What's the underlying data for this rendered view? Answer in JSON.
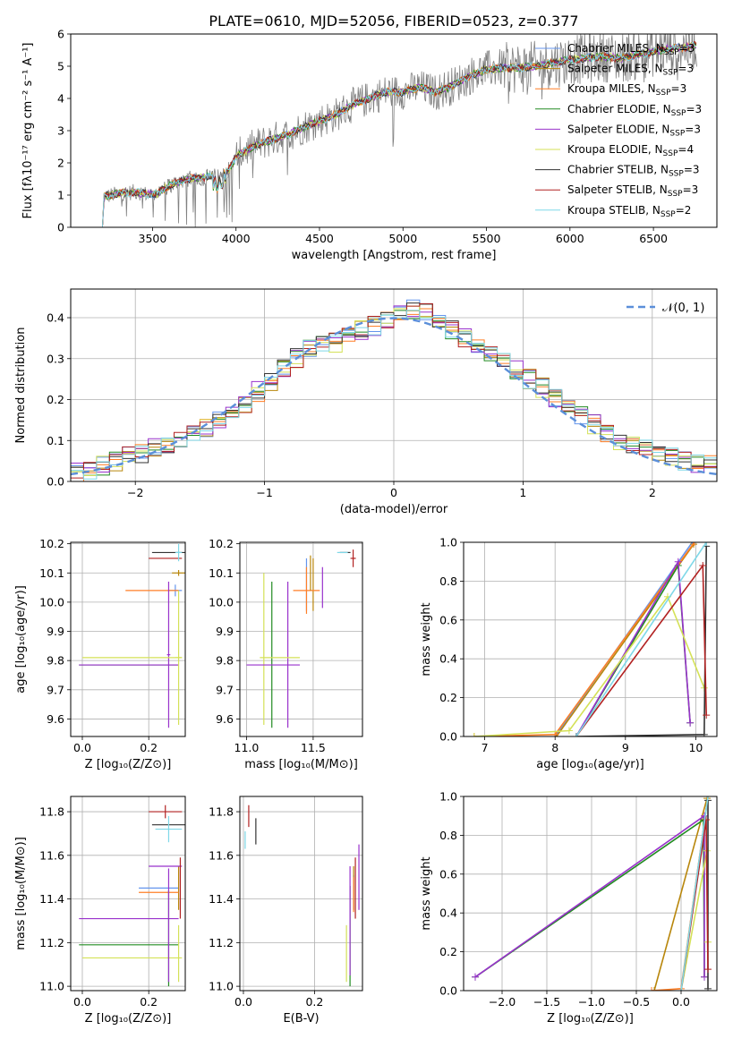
{
  "figure_title": "PLATE=0610, MJD=52056, FIBERID=0523, z=0.377",
  "palette": {
    "Chabrier MILES": "#6495ed",
    "Salpeter MILES": "#b8860b",
    "Kroupa MILES": "#ff7f27",
    "Chabrier ELODIE": "#228b22",
    "Salpeter ELODIE": "#9932cc",
    "Kroupa ELODIE": "#d4e157",
    "Chabrier STELIB": "#333333",
    "Salpeter STELIB": "#b22222",
    "Kroupa STELIB": "#7fd8e8",
    "data": "#808080",
    "gauss": "#5b8fd9"
  },
  "chart_data": [
    {
      "id": "spectrum",
      "type": "line",
      "xlabel": "wavelength [Angstrom, rest frame]",
      "ylabel": "Flux [fλ10⁻¹⁷ erg cm⁻² s⁻¹ A⁻¹]",
      "xlim": [
        3010,
        6880
      ],
      "ylim": [
        0,
        6
      ],
      "xticks": [
        3500,
        4000,
        4500,
        5000,
        5500,
        6000,
        6500
      ],
      "yticks": [
        0,
        1,
        2,
        3,
        4,
        5,
        6
      ],
      "grid": false,
      "legend_position": "top-right",
      "continuum_knots": [
        [
          3200,
          0
        ],
        [
          3210,
          0.95
        ],
        [
          3300,
          1.05
        ],
        [
          3400,
          1.1
        ],
        [
          3480,
          1.02
        ],
        [
          3530,
          1.05
        ],
        [
          3600,
          1.3
        ],
        [
          3700,
          1.5
        ],
        [
          3800,
          1.55
        ],
        [
          3900,
          1.6
        ],
        [
          3960,
          1.8
        ],
        [
          4000,
          2.2
        ],
        [
          4100,
          2.5
        ],
        [
          4200,
          2.7
        ],
        [
          4300,
          2.85
        ],
        [
          4400,
          3.1
        ],
        [
          4500,
          3.3
        ],
        [
          4600,
          3.5
        ],
        [
          4700,
          3.8
        ],
        [
          4800,
          4.0
        ],
        [
          4900,
          4.2
        ],
        [
          5000,
          4.2
        ],
        [
          5100,
          4.35
        ],
        [
          5200,
          4.2
        ],
        [
          5300,
          4.4
        ],
        [
          5400,
          4.7
        ],
        [
          5500,
          4.9
        ],
        [
          5600,
          4.95
        ],
        [
          5700,
          4.95
        ],
        [
          5800,
          5.0
        ],
        [
          5900,
          5.1
        ],
        [
          6000,
          5.2
        ],
        [
          6100,
          5.25
        ],
        [
          6200,
          5.3
        ],
        [
          6300,
          5.25
        ],
        [
          6400,
          5.35
        ],
        [
          6500,
          5.45
        ],
        [
          6600,
          5.55
        ],
        [
          6700,
          5.6
        ],
        [
          6750,
          5.65
        ]
      ],
      "series": [
        {
          "label": "Chabrier MILES",
          "nssp": "3"
        },
        {
          "label": "Salpeter MILES",
          "nssp": "3"
        },
        {
          "label": "Kroupa MILES",
          "nssp": "3"
        },
        {
          "label": "Chabrier ELODIE",
          "nssp": "3"
        },
        {
          "label": "Salpeter ELODIE",
          "nssp": "3"
        },
        {
          "label": "Kroupa ELODIE",
          "nssp": "4"
        },
        {
          "label": "Chabrier STELIB",
          "nssp": "3"
        },
        {
          "label": "Salpeter STELIB",
          "nssp": "3"
        },
        {
          "label": "Kroupa STELIB",
          "nssp": "2"
        }
      ]
    },
    {
      "id": "residuals",
      "type": "step",
      "xlabel": "(data-model)/error",
      "ylabel": "Normed distribution",
      "xlim": [
        -2.5,
        2.5
      ],
      "ylim": [
        0,
        0.47
      ],
      "xticks": [
        -2,
        -1,
        0,
        1,
        2
      ],
      "yticks": [
        0.0,
        0.1,
        0.2,
        0.3,
        0.4
      ],
      "grid": true,
      "legend_position": "top-right",
      "gauss_label": "𝒩(0, 1)",
      "bins": 50,
      "base_histogram": [
        0.02,
        0.03,
        0.04,
        0.05,
        0.06,
        0.07,
        0.08,
        0.09,
        0.1,
        0.12,
        0.13,
        0.15,
        0.17,
        0.19,
        0.22,
        0.24,
        0.28,
        0.3,
        0.32,
        0.33,
        0.34,
        0.36,
        0.37,
        0.38,
        0.4,
        0.41,
        0.42,
        0.41,
        0.39,
        0.37,
        0.35,
        0.33,
        0.31,
        0.29,
        0.27,
        0.25,
        0.23,
        0.2,
        0.18,
        0.16,
        0.14,
        0.12,
        0.1,
        0.09,
        0.08,
        0.07,
        0.06,
        0.05,
        0.045,
        0.04
      ]
    },
    {
      "id": "age_vs_Z",
      "type": "errorbar",
      "xlabel": "Z [log₁₀(Z/Z⊙)]",
      "ylabel": "age  [log₁₀(age/yr)]",
      "xlim": [
        -0.035,
        0.31
      ],
      "ylim": [
        9.54,
        10.205
      ],
      "xticks": [
        0.0,
        0.2
      ],
      "yticks": [
        9.6,
        9.7,
        9.8,
        9.9,
        10.0,
        10.1,
        10.2
      ],
      "grid": true,
      "points": [
        {
          "s": "Chabrier MILES",
          "x": 0.28,
          "xe": 0.02,
          "y": 10.04,
          "ye": 0.02
        },
        {
          "s": "Salpeter MILES",
          "x": 0.29,
          "xe": 0.02,
          "y": 10.1,
          "ye": 0.01
        },
        {
          "s": "Kroupa MILES",
          "x": 0.21,
          "xe": 0.08,
          "y": 10.04,
          "ye": 0.0
        },
        {
          "s": "Chabrier ELODIE",
          "x": 0.14,
          "xe": 0.15,
          "y": 9.785,
          "ye": 0.0
        },
        {
          "s": "Salpeter ELODIE",
          "x": 0.26,
          "xe": 0.005,
          "y": 9.82,
          "ye": 0.25
        },
        {
          "s": "Kroupa ELODIE",
          "x": 0.15,
          "xe": 0.15,
          "y": 9.81,
          "ye": 0.0
        },
        {
          "s": "Chabrier STELIB",
          "x": 0.26,
          "xe": 0.05,
          "y": 10.17,
          "ye": 0.0
        },
        {
          "s": "Salpeter STELIB",
          "x": 0.25,
          "xe": 0.05,
          "y": 10.15,
          "ye": 0.0
        },
        {
          "s": "Kroupa STELIB",
          "x": 0.29,
          "xe": 0.01,
          "y": 10.17,
          "ye": 0.03
        },
        {
          "s": "Salpeter ELODIE",
          "x": 0.14,
          "xe": 0.15,
          "y": 9.785,
          "ye": 0.0
        },
        {
          "s": "Kroupa ELODIE",
          "x": 0.29,
          "xe": 0.01,
          "y": 9.81,
          "ye": 0.23
        }
      ]
    },
    {
      "id": "age_vs_mass",
      "type": "errorbar",
      "xlabel": "mass [log₁₀(M/M⊙)]",
      "ylabel": "",
      "xlim": [
        10.95,
        11.87
      ],
      "ylim": [
        9.54,
        10.205
      ],
      "xticks": [
        11.0,
        11.5
      ],
      "yticks": [
        9.6,
        9.7,
        9.8,
        9.9,
        10.0,
        10.1,
        10.2
      ],
      "grid": true,
      "points": [
        {
          "s": "Chabrier MILES",
          "x": 11.45,
          "xe": 0.0,
          "y": 10.06,
          "ye": 0.09
        },
        {
          "s": "Salpeter MILES",
          "x": 11.5,
          "xe": 0.0,
          "y": 10.06,
          "ye": 0.09
        },
        {
          "s": "Kroupa MILES",
          "x": 11.45,
          "xe": 0.1,
          "y": 10.04,
          "ye": 0.08
        },
        {
          "s": "Chabrier ELODIE",
          "x": 11.19,
          "xe": 0.0,
          "y": 9.82,
          "ye": 0.25
        },
        {
          "s": "Salpeter ELODIE",
          "x": 11.31,
          "xe": 0.0,
          "y": 9.82,
          "ye": 0.25
        },
        {
          "s": "Kroupa ELODIE",
          "x": 11.13,
          "xe": 0.0,
          "y": 9.84,
          "ye": 0.26
        },
        {
          "s": "Chabrier STELIB",
          "x": 11.74,
          "xe": 0.04,
          "y": 10.17,
          "ye": 0.0
        },
        {
          "s": "Salpeter STELIB",
          "x": 11.8,
          "xe": 0.02,
          "y": 10.15,
          "ye": 0.03
        },
        {
          "s": "Kroupa STELIB",
          "x": 11.72,
          "xe": 0.04,
          "y": 10.17,
          "ye": 0.0
        },
        {
          "s": "Salpeter ELODIE",
          "x": 11.2,
          "xe": 0.2,
          "y": 9.785,
          "ye": 0.0
        },
        {
          "s": "Kroupa ELODIE",
          "x": 11.25,
          "xe": 0.15,
          "y": 9.81,
          "ye": 0.0
        },
        {
          "s": "Salpeter MILES",
          "x": 11.48,
          "xe": 0.0,
          "y": 10.1,
          "ye": 0.06
        },
        {
          "s": "Salpeter ELODIE",
          "x": 11.57,
          "xe": 0.0,
          "y": 10.05,
          "ye": 0.07
        }
      ]
    },
    {
      "id": "weight_vs_age",
      "type": "line",
      "xlabel": "age  [log₁₀(age/yr)]",
      "ylabel": "mass weight",
      "xlim": [
        6.7,
        10.3
      ],
      "ylim": [
        0,
        1
      ],
      "xticks": [
        7,
        8,
        9,
        10
      ],
      "yticks": [
        0.0,
        0.2,
        0.4,
        0.6,
        0.8,
        1.0
      ],
      "grid": true,
      "series": [
        {
          "s": "Chabrier MILES",
          "pts": [
            [
              8.0,
              0.0
            ],
            [
              9.95,
              1.0
            ]
          ]
        },
        {
          "s": "Salpeter MILES",
          "pts": [
            [
              8.02,
              0.0
            ],
            [
              9.97,
              0.99
            ]
          ]
        },
        {
          "s": "Kroupa MILES",
          "pts": [
            [
              6.85,
              0.0
            ],
            [
              8.0,
              0.01
            ],
            [
              9.98,
              1.0
            ]
          ]
        },
        {
          "s": "Chabrier ELODIE",
          "pts": [
            [
              8.3,
              0.0
            ],
            [
              9.75,
              0.88
            ],
            [
              9.92,
              0.07
            ]
          ]
        },
        {
          "s": "Salpeter ELODIE",
          "pts": [
            [
              8.3,
              0.0
            ],
            [
              9.75,
              0.9
            ],
            [
              9.92,
              0.07
            ]
          ]
        },
        {
          "s": "Kroupa ELODIE",
          "pts": [
            [
              6.85,
              0.0
            ],
            [
              8.2,
              0.03
            ],
            [
              9.6,
              0.72
            ],
            [
              10.12,
              0.25
            ]
          ]
        },
        {
          "s": "Chabrier STELIB",
          "pts": [
            [
              8.3,
              0.0
            ],
            [
              10.12,
              0.01
            ],
            [
              10.15,
              0.98
            ]
          ]
        },
        {
          "s": "Salpeter STELIB",
          "pts": [
            [
              8.3,
              0.0
            ],
            [
              10.1,
              0.88
            ],
            [
              10.15,
              0.11
            ]
          ]
        },
        {
          "s": "Kroupa STELIB",
          "pts": [
            [
              8.3,
              0.0
            ],
            [
              10.15,
              1.0
            ]
          ]
        }
      ]
    },
    {
      "id": "mass_vs_Z",
      "type": "errorbar",
      "xlabel": "Z [log₁₀(Z/Z⊙)]",
      "ylabel": "mass [log₁₀(M/M⊙)]",
      "xlim": [
        -0.035,
        0.31
      ],
      "ylim": [
        10.98,
        11.87
      ],
      "xticks": [
        0.0,
        0.2
      ],
      "yticks": [
        11.0,
        11.2,
        11.4,
        11.6,
        11.8
      ],
      "grid": true,
      "points": [
        {
          "s": "Chabrier MILES",
          "x": 0.23,
          "xe": 0.06,
          "y": 11.45,
          "ye": 0.0
        },
        {
          "s": "Salpeter MILES",
          "x": 0.29,
          "xe": 0.0,
          "y": 11.45,
          "ye": 0.1
        },
        {
          "s": "Kroupa MILES",
          "x": 0.23,
          "xe": 0.06,
          "y": 11.43,
          "ye": 0.0
        },
        {
          "s": "Chabrier ELODIE",
          "x": 0.14,
          "xe": 0.15,
          "y": 11.19,
          "ye": 0.0
        },
        {
          "s": "Salpeter ELODIE",
          "x": 0.14,
          "xe": 0.15,
          "y": 11.31,
          "ye": 0.0
        },
        {
          "s": "Kroupa ELODIE",
          "x": 0.15,
          "xe": 0.15,
          "y": 11.13,
          "ye": 0.0
        },
        {
          "s": "Chabrier STELIB",
          "x": 0.26,
          "xe": 0.05,
          "y": 11.74,
          "ye": 0.0
        },
        {
          "s": "Salpeter STELIB",
          "x": 0.25,
          "xe": 0.05,
          "y": 11.8,
          "ye": 0.03
        },
        {
          "s": "Kroupa STELIB",
          "x": 0.26,
          "xe": 0.04,
          "y": 11.72,
          "ye": 0.06
        },
        {
          "s": "Chabrier ELODIE",
          "x": 0.26,
          "xe": 0.0,
          "y": 11.22,
          "ye": 0.22
        },
        {
          "s": "Salpeter ELODIE",
          "x": 0.26,
          "xe": 0.0,
          "y": 11.28,
          "ye": 0.26
        },
        {
          "s": "Kroupa ELODIE",
          "x": 0.29,
          "xe": 0.0,
          "y": 11.15,
          "ye": 0.13
        },
        {
          "s": "Salpeter ELODIE",
          "x": 0.25,
          "xe": 0.05,
          "y": 11.55,
          "ye": 0.0
        },
        {
          "s": "Salpeter STELIB",
          "x": 0.295,
          "xe": 0.0,
          "y": 11.45,
          "ye": 0.14
        }
      ]
    },
    {
      "id": "mass_vs_EBV",
      "type": "errorbar",
      "xlabel": "E(B-V)",
      "ylabel": "",
      "xlim": [
        -0.01,
        0.335
      ],
      "ylim": [
        10.98,
        11.87
      ],
      "xticks": [
        0.0,
        0.2
      ],
      "yticks": [
        11.0,
        11.2,
        11.4,
        11.6,
        11.8
      ],
      "grid": true,
      "points": [
        {
          "s": "Chabrier MILES",
          "x": 0.31,
          "xe": 0.0,
          "y": 11.43,
          "ye": 0.08
        },
        {
          "s": "Salpeter MILES",
          "x": 0.31,
          "xe": 0.0,
          "y": 11.45,
          "ye": 0.1
        },
        {
          "s": "Kroupa MILES",
          "x": 0.31,
          "xe": 0.0,
          "y": 11.42,
          "ye": 0.08
        },
        {
          "s": "Chabrier ELODIE",
          "x": 0.3,
          "xe": 0.0,
          "y": 11.23,
          "ye": 0.23
        },
        {
          "s": "Salpeter ELODIE",
          "x": 0.3,
          "xe": 0.0,
          "y": 11.3,
          "ye": 0.25
        },
        {
          "s": "Kroupa ELODIE",
          "x": 0.29,
          "xe": 0.0,
          "y": 11.15,
          "ye": 0.13
        },
        {
          "s": "Chabrier STELIB",
          "x": 0.035,
          "xe": 0.0,
          "y": 11.71,
          "ye": 0.06
        },
        {
          "s": "Salpeter STELIB",
          "x": 0.015,
          "xe": 0.0,
          "y": 11.78,
          "ye": 0.05
        },
        {
          "s": "Kroupa STELIB",
          "x": 0.005,
          "xe": 0.0,
          "y": 11.67,
          "ye": 0.04
        },
        {
          "s": "Salpeter STELIB",
          "x": 0.315,
          "xe": 0.0,
          "y": 11.45,
          "ye": 0.14
        },
        {
          "s": "Salpeter ELODIE",
          "x": 0.325,
          "xe": 0.0,
          "y": 11.5,
          "ye": 0.15
        }
      ]
    },
    {
      "id": "weight_vs_Z",
      "type": "line",
      "xlabel": "Z [log₁₀(Z/Z⊙)]",
      "ylabel": "mass weight",
      "xlim": [
        -2.43,
        0.4
      ],
      "ylim": [
        0,
        1
      ],
      "xticks": [
        -2.0,
        -1.5,
        -1.0,
        -0.5,
        0.0
      ],
      "yticks": [
        0.0,
        0.2,
        0.4,
        0.6,
        0.8,
        1.0
      ],
      "grid": true,
      "series": [
        {
          "s": "Chabrier MILES",
          "pts": [
            [
              0.0,
              0.0
            ],
            [
              0.3,
              1.0
            ]
          ]
        },
        {
          "s": "Salpeter MILES",
          "pts": [
            [
              -0.3,
              0.0
            ],
            [
              0.29,
              0.99
            ]
          ]
        },
        {
          "s": "Kroupa MILES",
          "pts": [
            [
              -0.33,
              0.0
            ],
            [
              0.0,
              0.01
            ],
            [
              0.3,
              1.0
            ]
          ]
        },
        {
          "s": "Chabrier ELODIE",
          "pts": [
            [
              -2.3,
              0.07
            ],
            [
              0.25,
              0.88
            ],
            [
              0.26,
              0.07
            ]
          ]
        },
        {
          "s": "Salpeter ELODIE",
          "pts": [
            [
              -2.3,
              0.07
            ],
            [
              0.26,
              0.9
            ],
            [
              0.26,
              0.07
            ]
          ]
        },
        {
          "s": "Kroupa ELODIE",
          "pts": [
            [
              0.0,
              0.0
            ],
            [
              0.29,
              0.72
            ],
            [
              0.3,
              0.25
            ]
          ]
        },
        {
          "s": "Chabrier STELIB",
          "pts": [
            [
              0.3,
              0.01
            ],
            [
              0.3,
              0.98
            ]
          ]
        },
        {
          "s": "Salpeter STELIB",
          "pts": [
            [
              0.0,
              0.0
            ],
            [
              0.28,
              0.88
            ],
            [
              0.3,
              0.11
            ]
          ]
        },
        {
          "s": "Kroupa STELIB",
          "pts": [
            [
              0.0,
              0.0
            ],
            [
              0.3,
              1.0
            ]
          ]
        }
      ]
    }
  ]
}
